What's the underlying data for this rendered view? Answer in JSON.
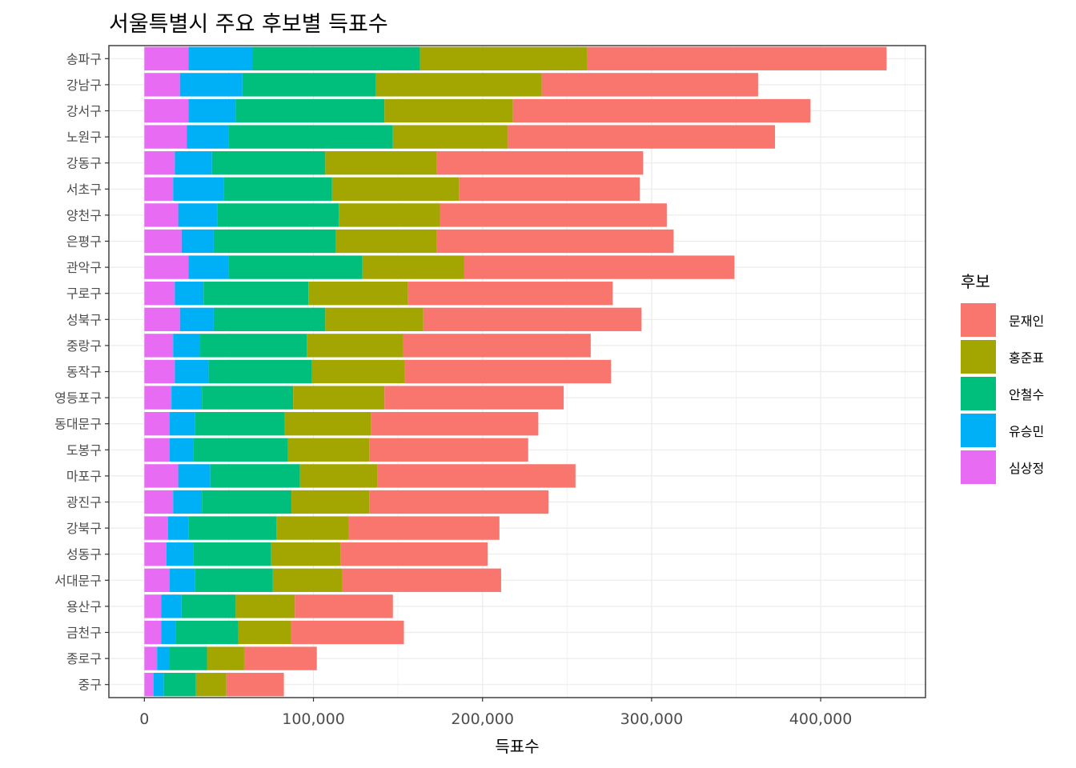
{
  "chart_data": {
    "type": "bar",
    "orientation": "horizontal",
    "stacked": true,
    "title": "서울특별시 주요 후보별 득표수",
    "xlabel": "득표수",
    "ylabel": "",
    "xlim": [
      -21000,
      462000
    ],
    "x_ticks": [
      0,
      100000,
      200000,
      300000,
      400000
    ],
    "x_tick_labels": [
      "0",
      "100,000",
      "200,000",
      "300,000",
      "400,000"
    ],
    "grid": true,
    "legend_title": "후보",
    "legend_position": "right",
    "categories": [
      "송파구",
      "강남구",
      "강서구",
      "노원구",
      "강동구",
      "서초구",
      "양천구",
      "은평구",
      "관악구",
      "구로구",
      "성북구",
      "중랑구",
      "동작구",
      "영등포구",
      "동대문구",
      "도봉구",
      "마포구",
      "광진구",
      "강북구",
      "성동구",
      "서대문구",
      "용산구",
      "금천구",
      "종로구",
      "중구"
    ],
    "series": [
      {
        "name": "문재인",
        "color": "#F8766D",
        "values": [
          177000,
          128000,
          176000,
          158000,
          122000,
          107000,
          134000,
          140000,
          160000,
          121000,
          129000,
          111000,
          122000,
          106000,
          99000,
          94000,
          117000,
          106000,
          89000,
          87000,
          94000,
          58000,
          67000,
          43000,
          34000
        ]
      },
      {
        "name": "홍준표",
        "color": "#A3A500",
        "values": [
          99000,
          98000,
          76000,
          68000,
          66000,
          75000,
          60000,
          60000,
          60000,
          59000,
          58000,
          57000,
          55000,
          54000,
          51000,
          48000,
          46000,
          46000,
          43000,
          41000,
          41000,
          35000,
          31000,
          22000,
          18000
        ]
      },
      {
        "name": "안철수",
        "color": "#00BF7D",
        "values": [
          99000,
          79000,
          88000,
          97000,
          67000,
          64000,
          72000,
          72000,
          79000,
          62000,
          66000,
          63000,
          61000,
          54000,
          53000,
          56000,
          53000,
          53000,
          52000,
          46000,
          46000,
          32000,
          37000,
          22000,
          19000
        ]
      },
      {
        "name": "유승민",
        "color": "#00B0F6",
        "values": [
          38000,
          37000,
          28000,
          25000,
          22000,
          30000,
          23000,
          19000,
          24000,
          17000,
          20000,
          16000,
          20000,
          18000,
          15000,
          14000,
          19000,
          17000,
          12000,
          16000,
          15000,
          12000,
          8500,
          7500,
          6000
        ]
      },
      {
        "name": "심상정",
        "color": "#E76BF3",
        "values": [
          26000,
          21000,
          26000,
          25000,
          18000,
          17000,
          20000,
          22000,
          26000,
          18000,
          21000,
          17000,
          18000,
          16000,
          15000,
          15000,
          20000,
          17000,
          14000,
          13000,
          15000,
          10000,
          10000,
          7500,
          5500
        ]
      }
    ]
  }
}
